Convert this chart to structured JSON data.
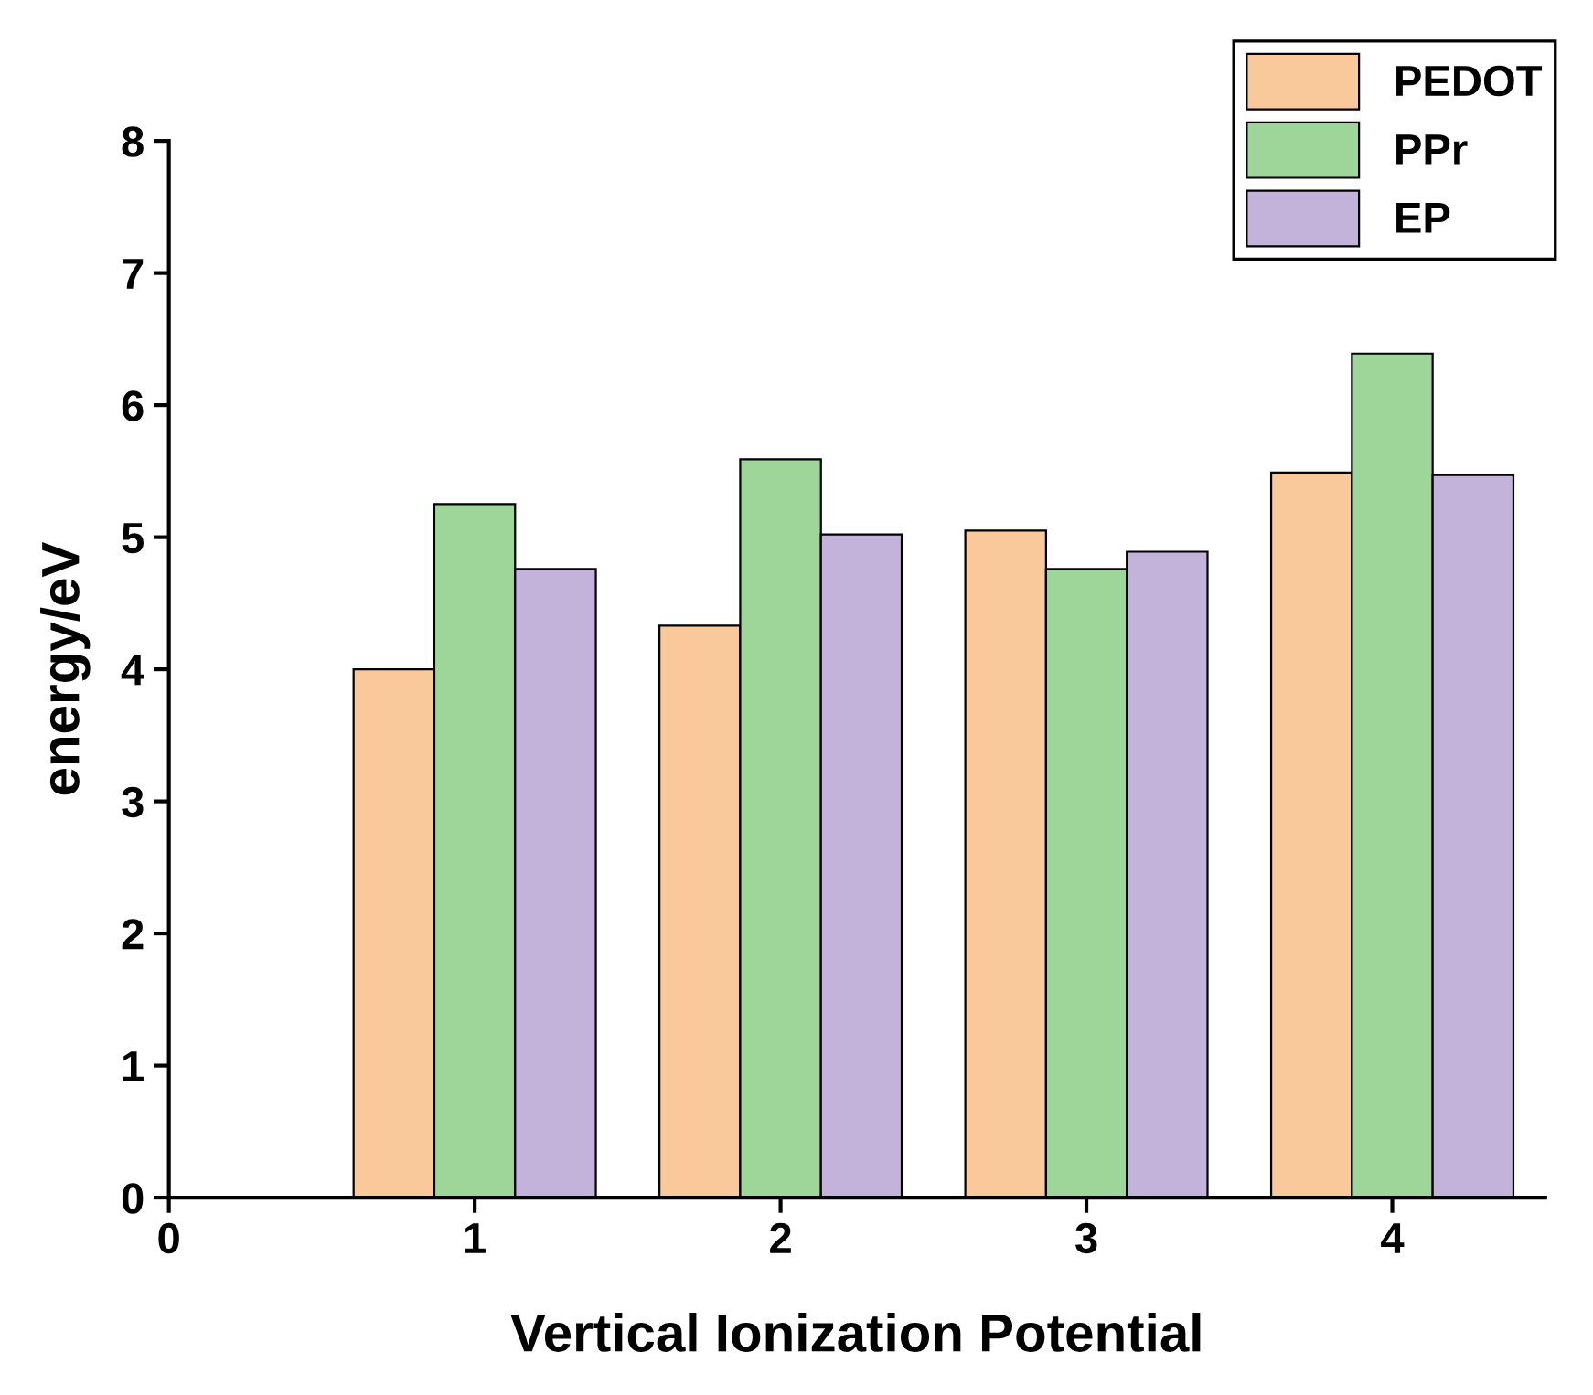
{
  "chart_data": {
    "type": "bar",
    "xlabel": "Vertical Ionization Potential",
    "ylabel": "energy/eV",
    "x": [
      1,
      2,
      3,
      4
    ],
    "series": [
      {
        "name": "PEDOT",
        "color": "#f9c89b",
        "values": [
          4.0,
          4.33,
          5.05,
          5.49
        ]
      },
      {
        "name": "PPr",
        "color": "#9ed69a",
        "values": [
          5.25,
          5.59,
          4.76,
          6.39
        ]
      },
      {
        "name": "EP",
        "color": "#c3b3da",
        "values": [
          4.76,
          5.02,
          4.89,
          5.47
        ]
      }
    ],
    "xlim": [
      0,
      4.5
    ],
    "xticks": [
      0,
      1,
      2,
      3,
      4
    ],
    "ylim": [
      0,
      8
    ],
    "yticks": [
      0,
      1,
      2,
      3,
      4,
      5,
      6,
      7,
      8
    ],
    "grid": false,
    "legend": "top right"
  }
}
